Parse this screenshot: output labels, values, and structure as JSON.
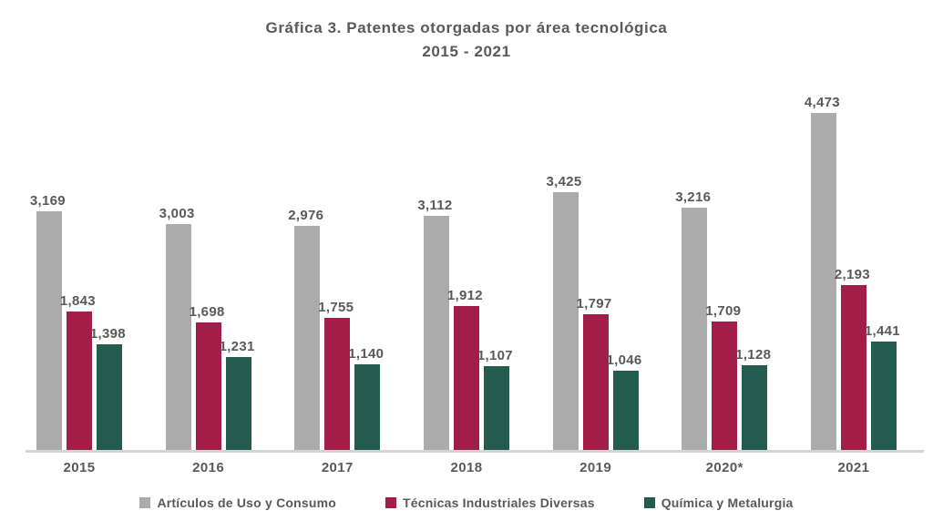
{
  "title": {
    "line1": "Gráfica 3. Patentes otorgadas por área tecnológica",
    "line2": "2015 - 2021"
  },
  "colors": {
    "text": "#58595B",
    "axis_line": "#D4D4D6"
  },
  "chart_data": {
    "type": "bar",
    "title": "Gráfica 3. Patentes otorgadas por área tecnológica 2015 - 2021",
    "categories": [
      "2015",
      "2016",
      "2017",
      "2018",
      "2019",
      "2020*",
      "2021"
    ],
    "series": [
      {
        "name": "Artículos de Uso y Consumo",
        "color": "#ABABAB",
        "values": [
          3169,
          3003,
          2976,
          3112,
          3425,
          3216,
          4473
        ]
      },
      {
        "name": "Técnicas Industriales Diversas",
        "color": "#A21E48",
        "values": [
          1843,
          1698,
          1755,
          1912,
          1797,
          1709,
          2193
        ]
      },
      {
        "name": "Química y Metalurgia",
        "color": "#235B4E",
        "values": [
          1398,
          1231,
          1140,
          1107,
          1046,
          1128,
          1441
        ]
      }
    ],
    "ylim": [
      0,
      4600
    ],
    "grid": false,
    "data_labels": true,
    "legend_position": "bottom",
    "xlabel": "",
    "ylabel": ""
  }
}
